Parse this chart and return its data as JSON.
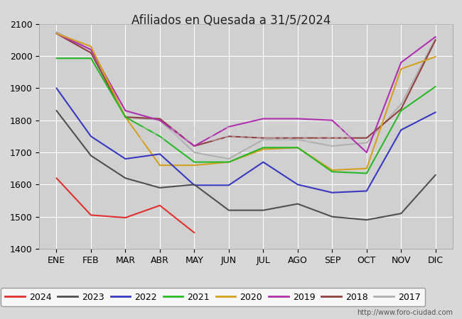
{
  "title": "Afiliados en Quesada a 31/5/2024",
  "title_text_color": "#222222",
  "ylim": [
    1400,
    2100
  ],
  "yticks": [
    1400,
    1500,
    1600,
    1700,
    1800,
    1900,
    2000,
    2100
  ],
  "months": [
    "ENE",
    "FEB",
    "MAR",
    "ABR",
    "MAY",
    "JUN",
    "JUL",
    "AGO",
    "SEP",
    "OCT",
    "NOV",
    "DIC"
  ],
  "bg_color": "#d8d8d8",
  "plot_bg_color": "#d0d0d0",
  "grid_color": "#ffffff",
  "watermark": "FORO-CIUDAD.COM",
  "url": "http://www.foro-ciudad.com",
  "series": {
    "2024": {
      "color": "#e03030",
      "data": [
        1620,
        1505,
        1497,
        1535,
        1450,
        null,
        null,
        null,
        null,
        null,
        null,
        null
      ]
    },
    "2023": {
      "color": "#505050",
      "data": [
        1830,
        1690,
        1620,
        1590,
        1600,
        1520,
        1520,
        1540,
        1500,
        1490,
        1510,
        1630
      ]
    },
    "2022": {
      "color": "#3838c0",
      "data": [
        1900,
        1750,
        1680,
        1695,
        1598,
        1598,
        1670,
        1600,
        1575,
        1580,
        1770,
        1825
      ]
    },
    "2021": {
      "color": "#28b828",
      "data": [
        1993,
        1993,
        1810,
        1750,
        1670,
        1670,
        1715,
        1715,
        1640,
        1635,
        1830,
        1905
      ]
    },
    "2020": {
      "color": "#d4a020",
      "data": [
        2070,
        2030,
        1810,
        1660,
        1660,
        1670,
        1710,
        1715,
        1645,
        1650,
        1960,
        1998
      ]
    },
    "2019": {
      "color": "#b030b0",
      "data": [
        2070,
        2020,
        1830,
        1800,
        1720,
        1780,
        1805,
        1805,
        1800,
        1700,
        1980,
        2060
      ]
    },
    "2018": {
      "color": "#904040",
      "data": [
        2070,
        2010,
        1810,
        1805,
        1720,
        1750,
        1745,
        1745,
        1745,
        1745,
        1835,
        2050
      ]
    },
    "2017": {
      "color": "#b0b0b0",
      "data": [
        2075,
        2020,
        1810,
        1800,
        1700,
        1680,
        1740,
        1740,
        1720,
        1730,
        1850,
        2055
      ]
    }
  },
  "legend_order": [
    "2024",
    "2023",
    "2022",
    "2021",
    "2020",
    "2019",
    "2018",
    "2017"
  ]
}
